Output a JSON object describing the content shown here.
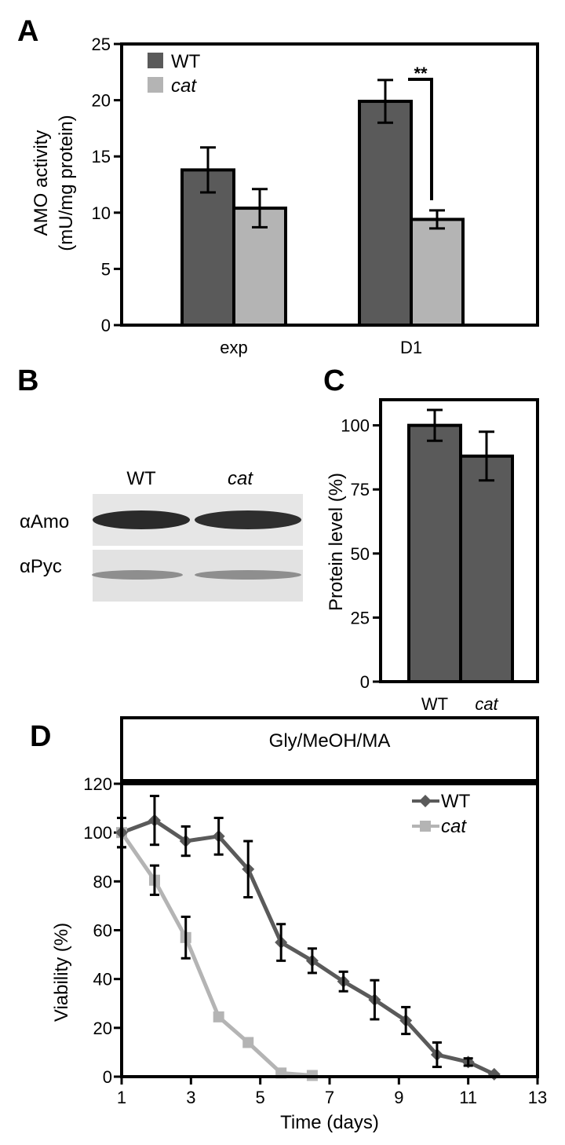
{
  "colors": {
    "wt": "#5a5a5a",
    "cat": "#b4b4b4",
    "axis": "#000000"
  },
  "panels": {
    "A": {
      "letter": "A",
      "chart_data": {
        "type": "bar",
        "categories": [
          "exp",
          "D1"
        ],
        "series": [
          {
            "name": "WT",
            "values": [
              13.8,
              19.9
            ],
            "errors": [
              2.0,
              1.9
            ]
          },
          {
            "name": "cat",
            "values": [
              10.4,
              9.4
            ],
            "errors": [
              1.7,
              0.8
            ]
          }
        ],
        "ylabel_line1": "AMO activity",
        "ylabel_line2": "(mU/mg protein)",
        "ylim": [
          0,
          25
        ],
        "yticks": [
          0,
          5,
          10,
          15,
          20,
          25
        ],
        "legend": [
          "WT",
          "cat"
        ],
        "legend_position": "top-left",
        "annotation": "**",
        "grid": false
      }
    },
    "B": {
      "letter": "B",
      "lanes": [
        "WT",
        "cat"
      ],
      "rows": [
        "αAmo",
        "αPyc"
      ]
    },
    "C": {
      "letter": "C",
      "chart_data": {
        "type": "bar",
        "categories": [
          "WT",
          "cat"
        ],
        "values": [
          100,
          88
        ],
        "errors": [
          6,
          9.5
        ],
        "ylabel": "Protein level (%)",
        "ylim": [
          0,
          110
        ],
        "yticks": [
          0,
          25,
          50,
          75,
          100
        ],
        "grid": false
      }
    },
    "D": {
      "letter": "D",
      "header": "Gly/MeOH/MA",
      "chart_data": {
        "type": "line",
        "series": [
          {
            "name": "WT",
            "marker": "diamond",
            "x": [
              1,
              1.95,
              2.85,
              3.8,
              4.65,
              5.6,
              6.5,
              7.4,
              8.3,
              9.2,
              10.1,
              11.0,
              11.75
            ],
            "y": [
              100,
              105,
              96.5,
              98.5,
              85,
              55,
              47.5,
              39,
              31.5,
              23,
              9,
              6,
              1
            ],
            "err": [
              6,
              10,
              6,
              7.5,
              11.5,
              7.5,
              5,
              4,
              8,
              5.5,
              5,
              1.5,
              0
            ]
          },
          {
            "name": "cat",
            "marker": "square",
            "x": [
              1,
              1.95,
              2.85,
              3.8,
              4.65,
              5.6,
              6.5
            ],
            "y": [
              100,
              80.5,
              57,
              24.5,
              14,
              1.5,
              0.5
            ],
            "err": [
              6,
              6,
              8.5,
              0,
              0,
              0,
              0
            ]
          }
        ],
        "xlabel": "Time (days)",
        "ylabel": "Viability (%)",
        "xlim": [
          1,
          13
        ],
        "xticks": [
          1,
          3,
          5,
          7,
          9,
          11,
          13
        ],
        "ylim": [
          0,
          120
        ],
        "yticks": [
          0,
          20,
          40,
          60,
          80,
          100,
          120
        ],
        "legend_position": "top-right",
        "grid": false
      }
    }
  }
}
